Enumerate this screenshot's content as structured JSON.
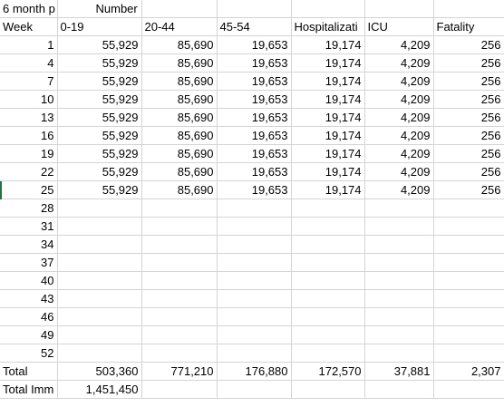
{
  "header_row": {
    "a": "6 month p",
    "title": "Number of Infections by age"
  },
  "column_row": {
    "week": "Week",
    "c1": "0-19",
    "c2": "20-44",
    "c3": "45-54",
    "c4": "Hospitalizati",
    "c5": "ICU",
    "c6": "Fatality"
  },
  "data_rows": [
    {
      "week": "1",
      "v1": "55,929",
      "v2": "85,690",
      "v3": "19,653",
      "v4": "19,174",
      "v5": "4,209",
      "v6": "256"
    },
    {
      "week": "4",
      "v1": "55,929",
      "v2": "85,690",
      "v3": "19,653",
      "v4": "19,174",
      "v5": "4,209",
      "v6": "256"
    },
    {
      "week": "7",
      "v1": "55,929",
      "v2": "85,690",
      "v3": "19,653",
      "v4": "19,174",
      "v5": "4,209",
      "v6": "256"
    },
    {
      "week": "10",
      "v1": "55,929",
      "v2": "85,690",
      "v3": "19,653",
      "v4": "19,174",
      "v5": "4,209",
      "v6": "256"
    },
    {
      "week": "13",
      "v1": "55,929",
      "v2": "85,690",
      "v3": "19,653",
      "v4": "19,174",
      "v5": "4,209",
      "v6": "256"
    },
    {
      "week": "16",
      "v1": "55,929",
      "v2": "85,690",
      "v3": "19,653",
      "v4": "19,174",
      "v5": "4,209",
      "v6": "256"
    },
    {
      "week": "19",
      "v1": "55,929",
      "v2": "85,690",
      "v3": "19,653",
      "v4": "19,174",
      "v5": "4,209",
      "v6": "256"
    },
    {
      "week": "22",
      "v1": "55,929",
      "v2": "85,690",
      "v3": "19,653",
      "v4": "19,174",
      "v5": "4,209",
      "v6": "256"
    },
    {
      "week": "25",
      "v1": "55,929",
      "v2": "85,690",
      "v3": "19,653",
      "v4": "19,174",
      "v5": "4,209",
      "v6": "256"
    }
  ],
  "empty_weeks": [
    "28",
    "31",
    "34",
    "37",
    "40",
    "43",
    "46",
    "49",
    "52"
  ],
  "total_row": {
    "label": "Total",
    "v1": "503,360",
    "v2": "771,210",
    "v3": "176,880",
    "v4": "172,570",
    "v5": "37,881",
    "v6": "2,307"
  },
  "total_imm_row": {
    "label": "Total Imm",
    "v1": "1,451,450"
  }
}
